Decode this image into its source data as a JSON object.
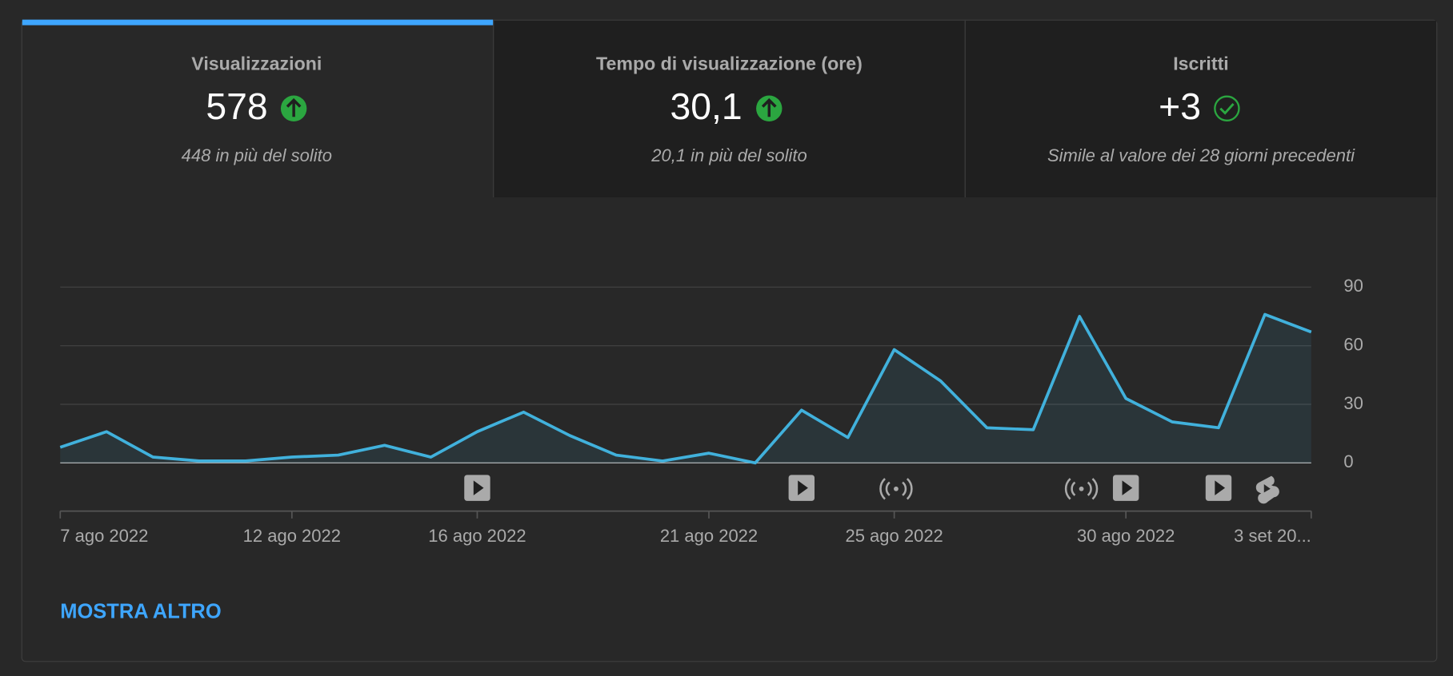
{
  "tabs": [
    {
      "title": "Visualizzazioni",
      "value": "578",
      "note": "448 in più del solito"
    },
    {
      "title": "Tempo di visualizzazione (ore)",
      "value": "30,1",
      "note": "20,1 in più del solito"
    },
    {
      "title": "Iscritti",
      "value": "+3",
      "note": "Simile al valore dei 28 giorni precedenti"
    }
  ],
  "chart_data": {
    "type": "line",
    "color": "#41b1dc",
    "categories": [
      "7 ago 2022",
      null,
      null,
      null,
      null,
      "12 ago 2022",
      null,
      null,
      null,
      "16 ago 2022",
      null,
      null,
      null,
      null,
      "21 ago 2022",
      null,
      null,
      null,
      "25 ago 2022",
      null,
      null,
      null,
      null,
      "30 ago 2022",
      null,
      null,
      null,
      "3 set 20..."
    ],
    "values": [
      8,
      16,
      3,
      1,
      1,
      3,
      4,
      9,
      3,
      16,
      26,
      14,
      4,
      1,
      5,
      0,
      27,
      13,
      58,
      42,
      18,
      17,
      75,
      33,
      21,
      18,
      76,
      67
    ],
    "ylim": [
      0,
      90
    ],
    "yticks": [
      0,
      30,
      60,
      90
    ],
    "grid": true
  },
  "show_more": "MOSTRA ALTRO"
}
